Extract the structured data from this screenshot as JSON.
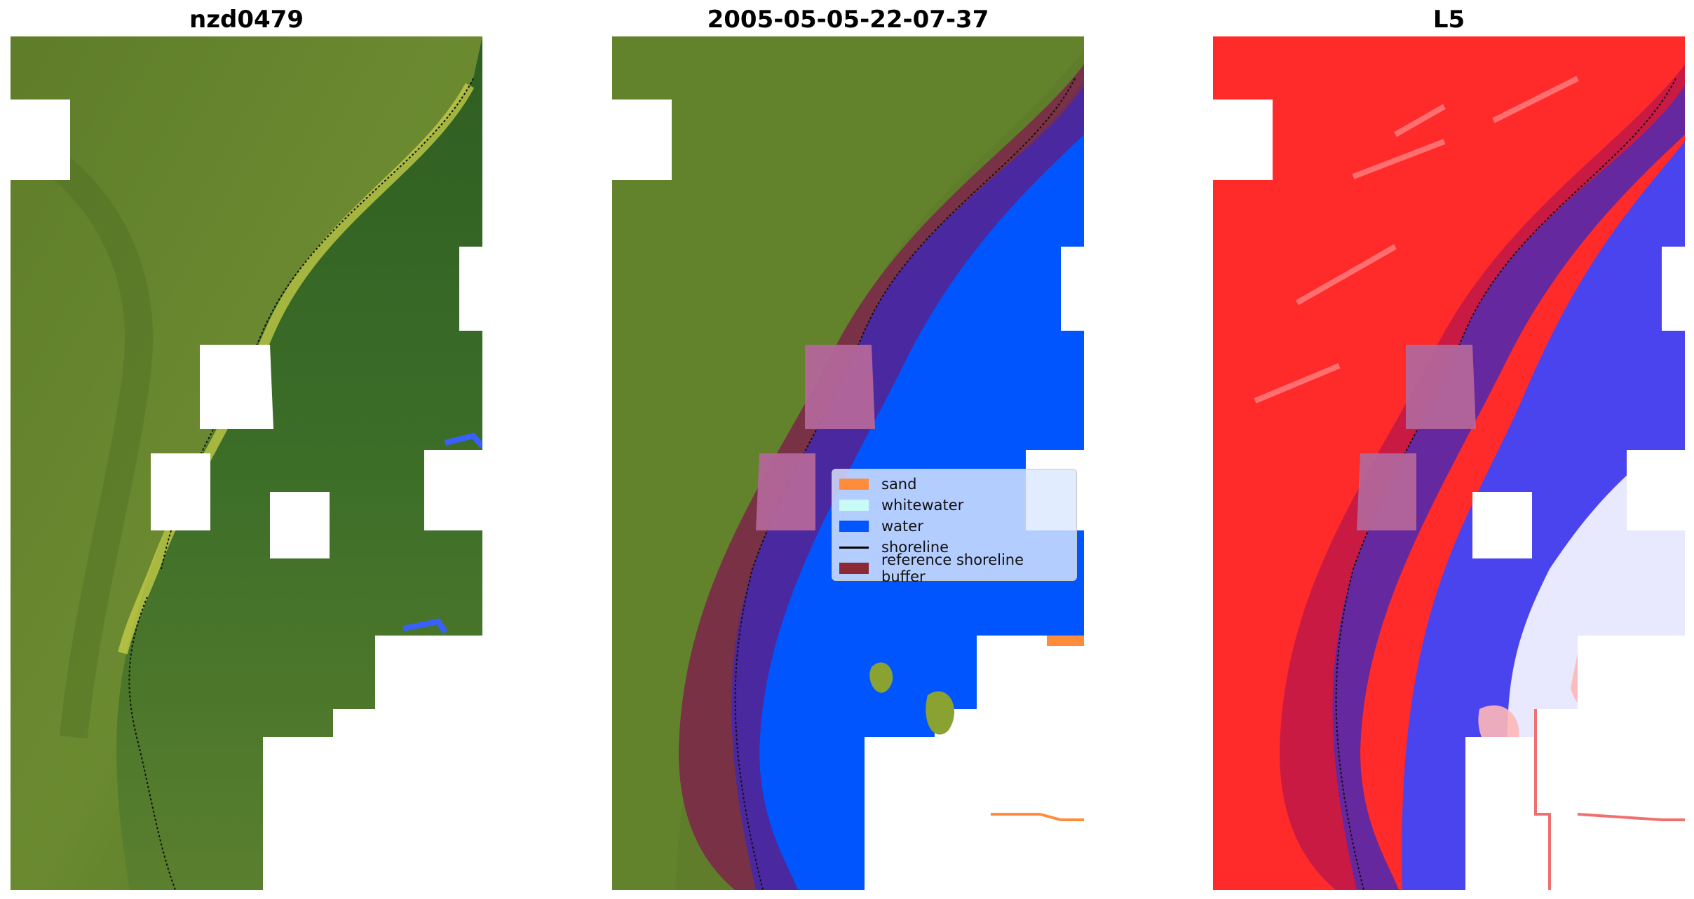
{
  "panels": [
    {
      "title": "nzd0479"
    },
    {
      "title": "2005-05-05-22-07-37"
    },
    {
      "title": "L5"
    }
  ],
  "legend": {
    "items": [
      {
        "label": "sand",
        "color": "#ff8c3a",
        "kind": "patch"
      },
      {
        "label": "whitewater",
        "color": "#c8fbf8",
        "kind": "patch"
      },
      {
        "label": "water",
        "color": "#0055ff",
        "kind": "patch"
      },
      {
        "label": "shoreline",
        "color": "#000000",
        "kind": "line"
      },
      {
        "label": "reference shoreline buffer",
        "color": "#8b2a35",
        "kind": "patch"
      }
    ]
  },
  "colors": {
    "vegetation": "#5a7a28",
    "vegetation_dark": "#3e6322",
    "water_class": "#0055ff",
    "buffer": "#7b2a48",
    "water_in_buffer": "#4a28a0",
    "land_index": "#ff2a2a",
    "water_index": "#3a3aee"
  }
}
